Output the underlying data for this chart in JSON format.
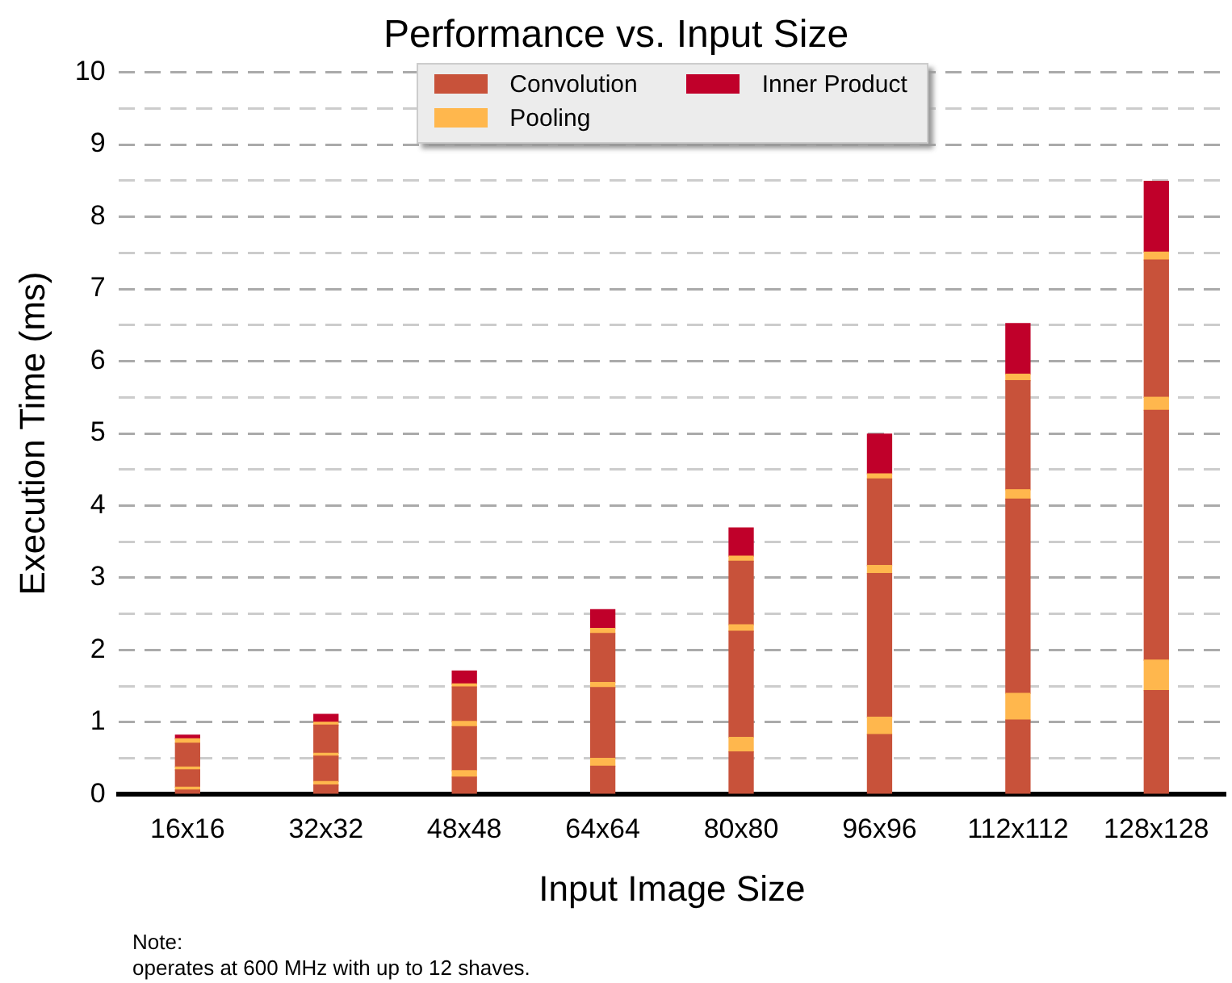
{
  "chart_data": {
    "type": "bar",
    "title": "Performance vs. Input Size",
    "xlabel": "Input Image Size",
    "ylabel": "Execution Time (ms)",
    "categories": [
      "16x16",
      "32x32",
      "48x48",
      "64x64",
      "80x80",
      "96x96",
      "112x112",
      "128x128"
    ],
    "stacked": true,
    "series": [
      {
        "name": "Convolution",
        "color": "#c8523a",
        "values": [
          0.06,
          0.13,
          0.24,
          0.39,
          0.59,
          0.83,
          1.03,
          1.44
        ]
      },
      {
        "name": "Pooling",
        "color": "#ffb74d",
        "values": [
          0.04,
          0.05,
          0.09,
          0.11,
          0.2,
          0.24,
          0.37,
          0.42
        ]
      },
      {
        "color": "#c8523a",
        "values": [
          0.24,
          0.35,
          0.61,
          0.98,
          1.47,
          1.99,
          2.69,
          3.46
        ]
      },
      {
        "color": "#ffb74d",
        "values": [
          0.04,
          0.04,
          0.07,
          0.07,
          0.09,
          0.11,
          0.13,
          0.18
        ]
      },
      {
        "color": "#c8523a",
        "values": [
          0.33,
          0.39,
          0.48,
          0.68,
          0.88,
          1.2,
          1.51,
          1.9
        ]
      },
      {
        "color": "#ffb74d",
        "values": [
          0.06,
          0.04,
          0.04,
          0.07,
          0.07,
          0.07,
          0.09,
          0.11
        ]
      },
      {
        "name": "Inner Product",
        "color": "#c0002a",
        "values": [
          0.05,
          0.11,
          0.18,
          0.26,
          0.39,
          0.55,
          0.7,
          0.98
        ]
      }
    ],
    "ylim": [
      0,
      10
    ],
    "yticks": [
      0,
      {
        "value": 0.5,
        "label": null
      },
      1,
      {
        "value": 1.5,
        "label": null
      },
      2,
      {
        "value": 2.5,
        "label": null
      },
      3,
      {
        "value": 3.5,
        "label": null
      },
      4,
      {
        "value": 4.5,
        "label": null
      },
      5,
      {
        "value": 5.5,
        "label": null
      },
      6,
      {
        "value": 6.5,
        "label": null
      },
      7,
      {
        "value": 7.5,
        "label": null
      },
      8,
      {
        "value": 8.5,
        "label": null
      },
      9,
      {
        "value": 9.5,
        "label": null
      },
      10
    ],
    "grid": "y",
    "legend": "top",
    "annotations": [
      "Note:",
      "operates at 600 MHz with up to 12 shaves."
    ]
  }
}
